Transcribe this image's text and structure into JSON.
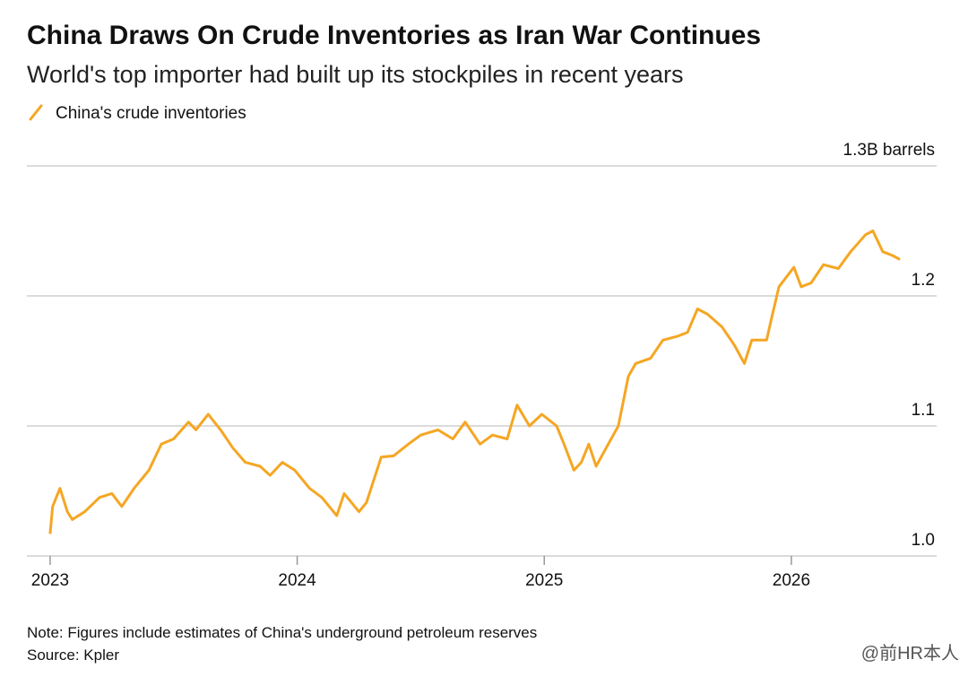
{
  "chart_data": {
    "type": "line",
    "title": "China Draws On Crude Inventories as Iran War Continues",
    "subtitle": "World's top importer had built up its stockpiles in recent years",
    "note": "Note: Figures include estimates of China's underground petroleum reserves",
    "source": "Source: Kpler",
    "watermark": "@前HR本人",
    "x": [
      2023.0,
      2023.01,
      2023.04,
      2023.07,
      2023.09,
      2023.14,
      2023.2,
      2023.25,
      2023.29,
      2023.34,
      2023.4,
      2023.45,
      2023.5,
      2023.56,
      2023.59,
      2023.64,
      2023.69,
      2023.74,
      2023.79,
      2023.85,
      2023.89,
      2023.94,
      2023.99,
      2024.05,
      2024.1,
      2024.16,
      2024.19,
      2024.25,
      2024.28,
      2024.34,
      2024.39,
      2024.45,
      2024.5,
      2024.57,
      2024.63,
      2024.68,
      2024.74,
      2024.79,
      2024.85,
      2024.89,
      2024.94,
      2024.99,
      2025.05,
      2025.08,
      2025.12,
      2025.15,
      2025.18,
      2025.21,
      2025.25,
      2025.3,
      2025.34,
      2025.37,
      2025.43,
      2025.48,
      2025.54,
      2025.58,
      2025.62,
      2025.66,
      2025.72,
      2025.77,
      2025.81,
      2025.84,
      2025.9,
      2025.92,
      2025.95,
      2026.01,
      2026.04,
      2026.08,
      2026.13,
      2026.19,
      2026.24,
      2026.3,
      2026.33,
      2026.37,
      2026.41,
      2026.44
    ],
    "series": [
      {
        "name": "China's crude inventories",
        "color": "#f5a623",
        "values": [
          1.017,
          1.038,
          1.052,
          1.034,
          1.028,
          1.034,
          1.045,
          1.048,
          1.038,
          1.052,
          1.066,
          1.086,
          1.09,
          1.103,
          1.097,
          1.109,
          1.097,
          1.083,
          1.072,
          1.069,
          1.062,
          1.072,
          1.066,
          1.052,
          1.045,
          1.031,
          1.048,
          1.034,
          1.041,
          1.076,
          1.077,
          1.086,
          1.093,
          1.097,
          1.09,
          1.103,
          1.086,
          1.093,
          1.09,
          1.116,
          1.1,
          1.109,
          1.1,
          1.086,
          1.066,
          1.072,
          1.086,
          1.069,
          1.083,
          1.1,
          1.138,
          1.148,
          1.152,
          1.166,
          1.169,
          1.172,
          1.19,
          1.186,
          1.176,
          1.162,
          1.148,
          1.166,
          1.166,
          1.183,
          1.207,
          1.222,
          1.207,
          1.21,
          1.224,
          1.221,
          1.234,
          1.247,
          1.25,
          1.234,
          1.231,
          1.228
        ]
      }
    ],
    "xlim": [
      2022.906,
      2026.588
    ],
    "xticks": [
      2023,
      2024,
      2025,
      2026
    ],
    "ylim": [
      1.0,
      1.3
    ],
    "yticks": [
      {
        "value": 1.0,
        "label": "1.0"
      },
      1.1,
      1.2,
      {
        "value": 1.3,
        "label": "1.3B barrels"
      }
    ],
    "grid": true
  }
}
